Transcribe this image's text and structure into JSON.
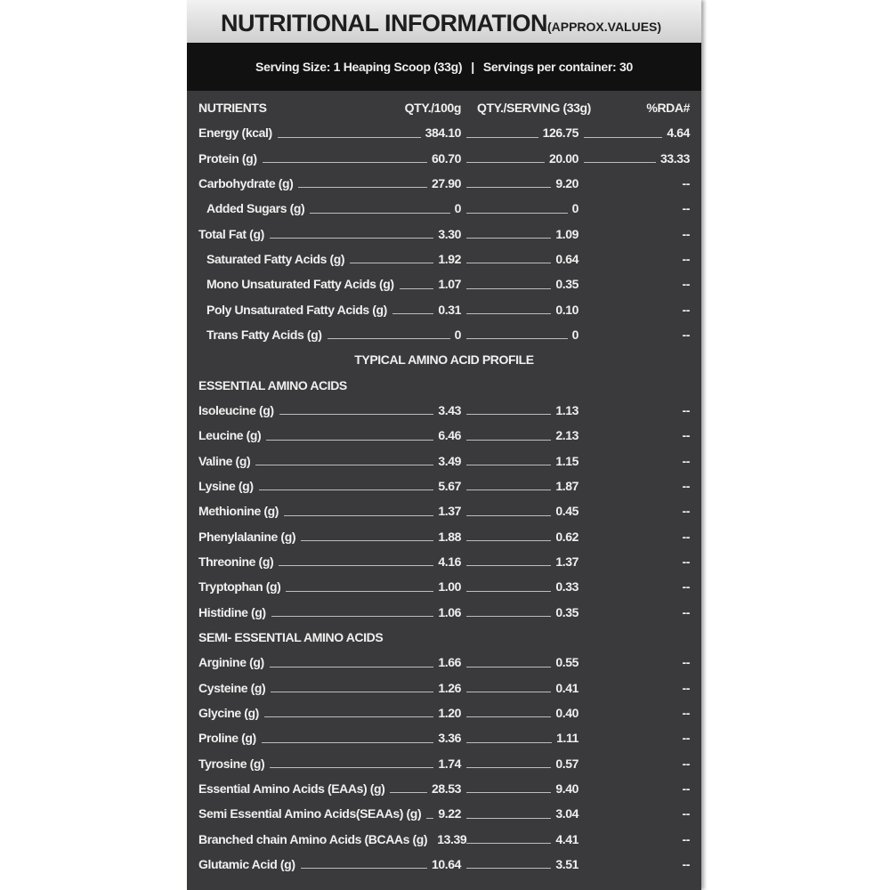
{
  "header": {
    "title": "NUTRITIONAL INFORMATION",
    "subtitle": "(APPROX.VALUES)"
  },
  "serving": {
    "size": "Serving Size: 1 Heaping Scoop (33g)",
    "separator": "|",
    "per_container": "Servings per container: 30"
  },
  "columns": [
    "NUTRIENTS",
    "QTY./100g",
    "QTY./SERVING (33g)",
    "%RDA#"
  ],
  "nutrients": [
    {
      "name": "Energy (kcal)",
      "per_100g": "384.10",
      "per_serving": "126.75",
      "rda": "4.64"
    },
    {
      "name": "Protein (g)",
      "per_100g": "60.70",
      "per_serving": "20.00",
      "rda": "33.33"
    },
    {
      "name": "Carbohydrate (g)",
      "per_100g": "27.90",
      "per_serving": "9.20",
      "rda": "--",
      "sub": [
        {
          "name": "Added Sugars (g)",
          "per_100g": "0",
          "per_serving": "0",
          "rda": "--"
        }
      ]
    },
    {
      "name": "Total Fat (g)",
      "per_100g": "3.30",
      "per_serving": "1.09",
      "rda": "--",
      "sub": [
        {
          "name": "Saturated Fatty Acids (g)",
          "per_100g": "1.92",
          "per_serving": "0.64",
          "rda": "--"
        },
        {
          "name": "Mono Unsaturated Fatty Acids (g)",
          "per_100g": "1.07",
          "per_serving": "0.35",
          "rda": "--"
        },
        {
          "name": "Poly Unsaturated Fatty Acids (g)",
          "per_100g": "0.31",
          "per_serving": "0.10",
          "rda": "--"
        },
        {
          "name": "Trans Fatty Acids (g)",
          "per_100g": "0",
          "per_serving": "0",
          "rda": "--"
        }
      ]
    }
  ],
  "amino_profile": {
    "title": "TYPICAL AMINO ACID PROFILE",
    "groups": [
      {
        "title": "ESSENTIAL AMINO ACIDS",
        "rows": [
          {
            "name": "Isoleucine (g)",
            "per_100g": "3.43",
            "per_serving": "1.13",
            "rda": "--"
          },
          {
            "name": "Leucine (g)",
            "per_100g": "6.46",
            "per_serving": "2.13",
            "rda": "--"
          },
          {
            "name": "Valine (g)",
            "per_100g": "3.49",
            "per_serving": "1.15",
            "rda": "--"
          },
          {
            "name": "Lysine (g)",
            "per_100g": "5.67",
            "per_serving": "1.87",
            "rda": "--"
          },
          {
            "name": "Methionine (g)",
            "per_100g": "1.37",
            "per_serving": "0.45",
            "rda": "--"
          },
          {
            "name": "Phenylalanine (g)",
            "per_100g": "1.88",
            "per_serving": "0.62",
            "rda": "--"
          },
          {
            "name": "Threonine (g)",
            "per_100g": "4.16",
            "per_serving": "1.37",
            "rda": "--"
          },
          {
            "name": "Tryptophan (g)",
            "per_100g": "1.00",
            "per_serving": "0.33",
            "rda": "--"
          },
          {
            "name": "Histidine (g)",
            "per_100g": "1.06",
            "per_serving": "0.35",
            "rda": "--"
          }
        ]
      },
      {
        "title": "SEMI- ESSENTIAL AMINO ACIDS",
        "rows": [
          {
            "name": "Arginine (g)",
            "per_100g": "1.66",
            "per_serving": "0.55",
            "rda": "--"
          },
          {
            "name": "Cysteine (g)",
            "per_100g": "1.26",
            "per_serving": "0.41",
            "rda": "--"
          },
          {
            "name": "Glycine (g)",
            "per_100g": "1.20",
            "per_serving": "0.40",
            "rda": "--"
          },
          {
            "name": "Proline (g)",
            "per_100g": "3.36",
            "per_serving": "1.11",
            "rda": "--"
          },
          {
            "name": "Tyrosine (g)",
            "per_100g": "1.74",
            "per_serving": "0.57",
            "rda": "--"
          },
          {
            "name": "Essential Amino Acids (EAAs) (g)",
            "per_100g": "28.53",
            "per_serving": "9.40",
            "rda": "--"
          },
          {
            "name": "Semi Essential Amino Acids(SEAAs) (g)",
            "per_100g": "9.22",
            "per_serving": "3.04",
            "rda": "--"
          },
          {
            "name": "Branched chain Amino Acids (BCAAs (g)",
            "per_100g": "13.39",
            "per_serving": "4.41",
            "rda": "--"
          },
          {
            "name": "Glutamic Acid (g)",
            "per_100g": "10.64",
            "per_serving": "3.51",
            "rda": "--"
          }
        ]
      }
    ]
  }
}
